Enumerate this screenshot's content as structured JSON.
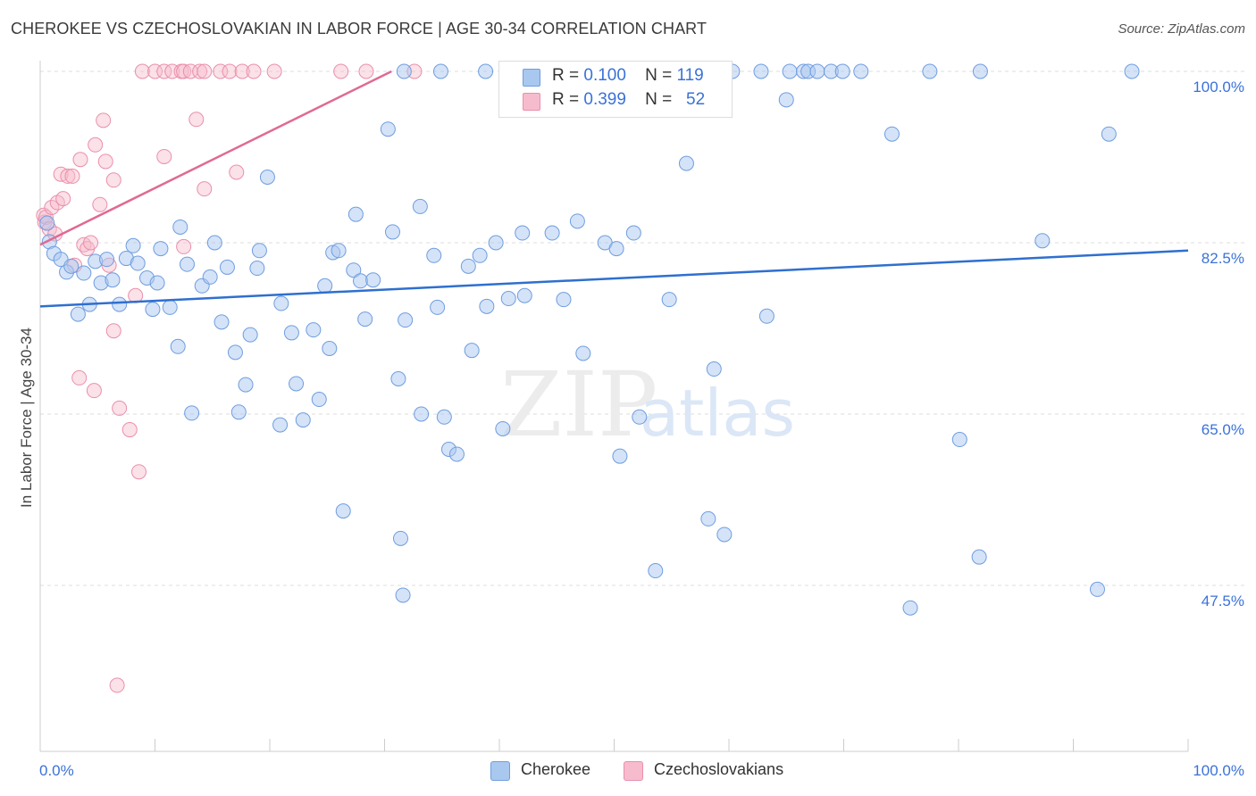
{
  "title": "CHEROKEE VS CZECHOSLOVAKIAN IN LABOR FORCE | AGE 30-34 CORRELATION CHART",
  "source": "Source: ZipAtlas.com",
  "watermark": {
    "zip": "ZIP",
    "atlas": "atlas"
  },
  "legend": {
    "rows": [
      {
        "r_label": "R =",
        "r_value": "0.100",
        "n_label": "N =",
        "n_value": "119"
      },
      {
        "r_label": "R =",
        "r_value": "0.399",
        "n_label": "N =",
        "n_value": "52"
      }
    ]
  },
  "colors": {
    "blue_fill": "#a9c8f0",
    "blue_stroke": "#6f9de0",
    "blue_line": "#2f6fcf",
    "pink_fill": "#f6bccd",
    "pink_stroke": "#ea8fab",
    "pink_line": "#e06a93",
    "axis_text": "#3a72d8",
    "grid": "#dddddd"
  },
  "chart_data": {
    "type": "scatter",
    "title": "CHEROKEE VS CZECHOSLOVAKIAN IN LABOR FORCE | AGE 30-34 CORRELATION CHART",
    "xlabel": "",
    "ylabel": "In Labor Force | Age 30-34",
    "xlim": [
      0,
      100
    ],
    "ylim": [
      30,
      102
    ],
    "x_tick_labels": [
      "0.0%",
      "100.0%"
    ],
    "y_ticks": [
      47.5,
      65.0,
      82.5,
      100.0
    ],
    "y_tick_labels": [
      "47.5%",
      "65.0%",
      "82.5%",
      "100.0%"
    ],
    "series": [
      {
        "name": "Cherokee",
        "r": 0.1,
        "n": 119,
        "trend": {
          "x": [
            0,
            100
          ],
          "y": [
            76.0,
            81.7
          ]
        },
        "points": [
          [
            0.6,
            84.5
          ],
          [
            0.8,
            82.6
          ],
          [
            1.2,
            81.4
          ],
          [
            1.8,
            80.8
          ],
          [
            2.3,
            79.5
          ],
          [
            2.7,
            80.1
          ],
          [
            3.3,
            75.2
          ],
          [
            3.8,
            79.4
          ],
          [
            4.3,
            76.2
          ],
          [
            4.8,
            80.6
          ],
          [
            5.3,
            78.4
          ],
          [
            5.8,
            80.8
          ],
          [
            6.3,
            78.7
          ],
          [
            6.9,
            76.2
          ],
          [
            7.5,
            80.9
          ],
          [
            8.1,
            82.2
          ],
          [
            8.5,
            80.4
          ],
          [
            9.3,
            78.9
          ],
          [
            9.8,
            75.7
          ],
          [
            10.2,
            78.4
          ],
          [
            10.5,
            81.9
          ],
          [
            11.3,
            75.9
          ],
          [
            12.0,
            71.9
          ],
          [
            12.2,
            84.1
          ],
          [
            12.8,
            80.3
          ],
          [
            13.2,
            65.1
          ],
          [
            14.1,
            78.1
          ],
          [
            14.8,
            79.0
          ],
          [
            15.2,
            82.5
          ],
          [
            15.8,
            74.4
          ],
          [
            16.3,
            80.0
          ],
          [
            17.0,
            71.3
          ],
          [
            17.3,
            65.2
          ],
          [
            17.9,
            68.0
          ],
          [
            18.3,
            73.1
          ],
          [
            18.9,
            79.9
          ],
          [
            19.1,
            81.7
          ],
          [
            19.8,
            89.2
          ],
          [
            20.9,
            63.9
          ],
          [
            21.0,
            76.3
          ],
          [
            21.9,
            73.3
          ],
          [
            22.3,
            68.1
          ],
          [
            22.9,
            64.4
          ],
          [
            23.8,
            73.6
          ],
          [
            24.3,
            66.5
          ],
          [
            24.8,
            78.1
          ],
          [
            25.2,
            71.7
          ],
          [
            25.5,
            81.5
          ],
          [
            26.0,
            81.7
          ],
          [
            26.4,
            55.1
          ],
          [
            27.3,
            79.7
          ],
          [
            27.5,
            85.4
          ],
          [
            27.9,
            78.6
          ],
          [
            28.3,
            74.7
          ],
          [
            29.0,
            78.7
          ],
          [
            30.3,
            94.1
          ],
          [
            30.7,
            83.6
          ],
          [
            31.2,
            68.6
          ],
          [
            31.4,
            52.3
          ],
          [
            31.6,
            46.5
          ],
          [
            31.8,
            74.6
          ],
          [
            33.1,
            86.2
          ],
          [
            33.2,
            65.0
          ],
          [
            34.3,
            81.2
          ],
          [
            34.6,
            75.9
          ],
          [
            35.2,
            64.7
          ],
          [
            35.6,
            61.4
          ],
          [
            36.3,
            60.9
          ],
          [
            37.3,
            80.1
          ],
          [
            37.6,
            71.5
          ],
          [
            38.3,
            81.2
          ],
          [
            38.9,
            76.0
          ],
          [
            39.7,
            82.5
          ],
          [
            40.3,
            63.5
          ],
          [
            40.8,
            76.8
          ],
          [
            42.0,
            83.5
          ],
          [
            42.2,
            77.1
          ],
          [
            44.6,
            83.5
          ],
          [
            45.6,
            76.7
          ],
          [
            46.8,
            84.7
          ],
          [
            47.3,
            71.2
          ],
          [
            49.2,
            82.5
          ],
          [
            50.2,
            81.9
          ],
          [
            50.5,
            60.7
          ],
          [
            51.7,
            83.5
          ],
          [
            52.2,
            64.7
          ],
          [
            53.6,
            49.0
          ],
          [
            54.8,
            76.7
          ],
          [
            56.3,
            90.6
          ],
          [
            58.2,
            54.3
          ],
          [
            58.7,
            69.6
          ],
          [
            59.6,
            52.7
          ],
          [
            31.7,
            100
          ],
          [
            34.9,
            100
          ],
          [
            38.8,
            100
          ],
          [
            41.3,
            100
          ],
          [
            43.0,
            100
          ],
          [
            48.4,
            100
          ],
          [
            51.6,
            100
          ],
          [
            53.3,
            100
          ],
          [
            56.2,
            100
          ],
          [
            60.3,
            100
          ],
          [
            62.8,
            100
          ],
          [
            65.3,
            100
          ],
          [
            66.5,
            100
          ],
          [
            66.9,
            100
          ],
          [
            67.7,
            100
          ],
          [
            68.9,
            100
          ],
          [
            69.9,
            100
          ],
          [
            71.5,
            100
          ],
          [
            77.5,
            100
          ],
          [
            81.9,
            100
          ],
          [
            95.1,
            100
          ],
          [
            93.1,
            93.6
          ],
          [
            74.2,
            93.6
          ],
          [
            65.0,
            97.1
          ],
          [
            87.3,
            82.7
          ],
          [
            63.3,
            75.0
          ],
          [
            80.1,
            62.4
          ],
          [
            81.8,
            50.4
          ],
          [
            92.1,
            47.1
          ],
          [
            75.8,
            45.2
          ]
        ]
      },
      {
        "name": "Czechoslovakians",
        "r": 0.399,
        "n": 52,
        "trend": {
          "x": [
            0,
            30.6
          ],
          "y": [
            82.3,
            100.0
          ]
        },
        "points": [
          [
            0.3,
            85.3
          ],
          [
            0.4,
            84.6
          ],
          [
            0.5,
            85.1
          ],
          [
            0.8,
            83.9
          ],
          [
            1.0,
            86.1
          ],
          [
            1.3,
            83.4
          ],
          [
            1.5,
            86.6
          ],
          [
            1.8,
            89.5
          ],
          [
            2.0,
            87.0
          ],
          [
            2.4,
            89.3
          ],
          [
            2.8,
            89.3
          ],
          [
            3.0,
            80.2
          ],
          [
            3.5,
            91.0
          ],
          [
            3.8,
            82.3
          ],
          [
            4.1,
            81.9
          ],
          [
            4.4,
            82.5
          ],
          [
            4.8,
            92.5
          ],
          [
            5.2,
            86.4
          ],
          [
            5.5,
            95.0
          ],
          [
            5.7,
            90.8
          ],
          [
            6.0,
            80.2
          ],
          [
            6.4,
            88.9
          ],
          [
            6.4,
            73.5
          ],
          [
            6.7,
            37.3
          ],
          [
            6.9,
            65.6
          ],
          [
            7.8,
            63.4
          ],
          [
            8.3,
            77.1
          ],
          [
            8.6,
            59.1
          ],
          [
            3.4,
            68.7
          ],
          [
            4.7,
            67.4
          ],
          [
            10.8,
            91.3
          ],
          [
            12.5,
            82.1
          ],
          [
            13.6,
            95.1
          ],
          [
            14.3,
            88.0
          ],
          [
            17.1,
            89.7
          ],
          [
            8.9,
            100
          ],
          [
            10.0,
            100
          ],
          [
            10.8,
            100
          ],
          [
            11.5,
            100
          ],
          [
            12.3,
            100
          ],
          [
            12.5,
            100
          ],
          [
            13.1,
            100
          ],
          [
            13.9,
            100
          ],
          [
            14.3,
            100
          ],
          [
            15.7,
            100
          ],
          [
            16.5,
            100
          ],
          [
            17.6,
            100
          ],
          [
            18.6,
            100
          ],
          [
            20.4,
            100
          ],
          [
            26.2,
            100
          ],
          [
            28.4,
            100
          ],
          [
            32.6,
            100
          ]
        ]
      }
    ]
  },
  "bottom_legend": {
    "items": [
      {
        "label": "Cherokee"
      },
      {
        "label": "Czechoslovakians"
      }
    ]
  }
}
